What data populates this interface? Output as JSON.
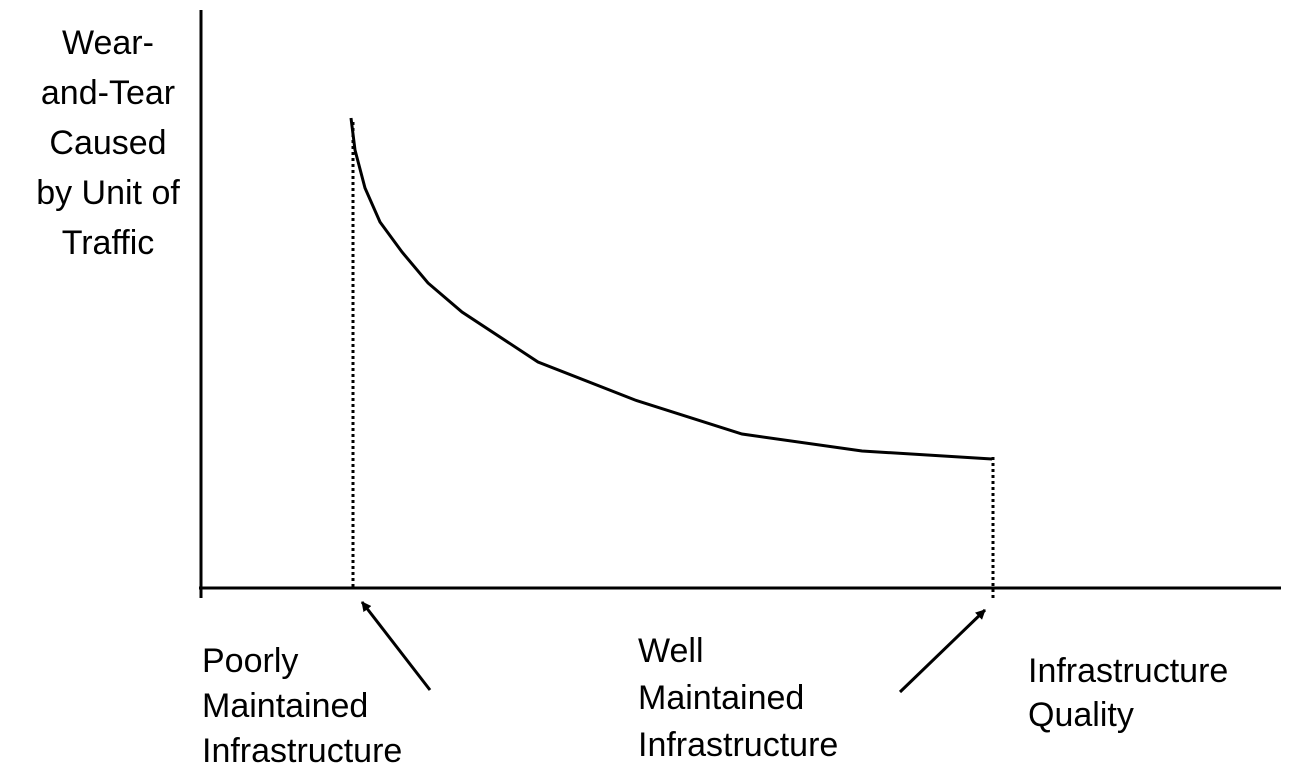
{
  "axes": {
    "y_label": [
      "Wear-",
      "and-Tear",
      "Caused",
      "by Unit of",
      "Traffic"
    ],
    "x_label": [
      "Infrastructure",
      "Quality"
    ]
  },
  "annotations": [
    {
      "lines": [
        "Poorly",
        "Maintained",
        "Infrastructure"
      ]
    },
    {
      "lines": [
        "Well",
        "Maintained",
        "Infrastructure"
      ]
    }
  ]
}
